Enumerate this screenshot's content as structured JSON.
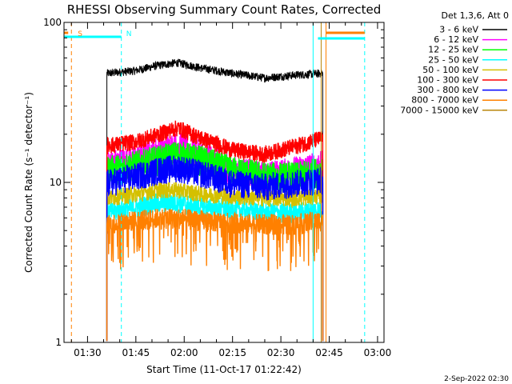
{
  "chart_data": {
    "type": "line",
    "title": "RHESSI Observing Summary Count Rates, Corrected",
    "xlabel": "Start Time (11-Oct-17 01:22:42)",
    "ylabel": "Corrected Count Rate (s⁻¹ detector⁻¹)",
    "xlim": [
      "01:22:42",
      "03:02:00"
    ],
    "ylim": [
      1,
      100
    ],
    "yscale": "log",
    "xticks": [
      "01:30",
      "01:45",
      "02:00",
      "02:15",
      "02:30",
      "02:45",
      "03:00"
    ],
    "yticks": [
      1,
      10,
      100
    ],
    "legend_title": "Det 1,3,6, Att 0",
    "legend_position": "top-right",
    "series": [
      {
        "name": "3 - 6 keV",
        "color": "#000000",
        "x": [
          "01:36",
          "01:45",
          "01:52",
          "01:58",
          "02:05",
          "02:15",
          "02:25",
          "02:35",
          "02:43"
        ],
        "values": [
          48,
          50,
          54,
          56,
          52,
          48,
          45,
          47,
          48
        ]
      },
      {
        "name": "6 - 12 keV",
        "color": "#ff00ff",
        "x": [
          "01:36",
          "01:45",
          "01:52",
          "01:58",
          "02:05",
          "02:15",
          "02:25",
          "02:35",
          "02:43"
        ],
        "values": [
          13,
          14,
          16,
          17,
          15,
          12,
          11,
          12,
          13
        ]
      },
      {
        "name": "12 - 25 keV",
        "color": "#00ff00",
        "x": [
          "01:36",
          "01:45",
          "01:52",
          "01:58",
          "02:05",
          "02:15",
          "02:25",
          "02:35",
          "02:43"
        ],
        "values": [
          12,
          13,
          14,
          15,
          14,
          12,
          11,
          11,
          12
        ]
      },
      {
        "name": "25 - 50 keV",
        "color": "#00ffff",
        "x": [
          "01:36",
          "01:45",
          "01:52",
          "01:58",
          "02:05",
          "02:15",
          "02:25",
          "02:35",
          "02:43"
        ],
        "values": [
          6.5,
          7,
          7.5,
          7.5,
          7,
          6.8,
          6.5,
          6.5,
          6.8
        ]
      },
      {
        "name": "50 - 100 keV",
        "color": "#d4c000",
        "x": [
          "01:36",
          "01:45",
          "01:52",
          "01:58",
          "02:05",
          "02:15",
          "02:25",
          "02:35",
          "02:43"
        ],
        "values": [
          8,
          8.5,
          9,
          9,
          8.5,
          8.2,
          8,
          8,
          8.3
        ]
      },
      {
        "name": "100 - 300 keV",
        "color": "#ff0000",
        "x": [
          "01:36",
          "01:45",
          "01:52",
          "01:58",
          "02:05",
          "02:15",
          "02:25",
          "02:35",
          "02:43"
        ],
        "values": [
          17,
          18,
          20,
          22,
          19,
          16,
          15,
          17,
          19
        ]
      },
      {
        "name": "300 - 800 keV",
        "color": "#0000ff",
        "x": [
          "01:36",
          "01:45",
          "01:52",
          "01:58",
          "02:05",
          "02:15",
          "02:25",
          "02:35",
          "02:43"
        ],
        "values": [
          10,
          11,
          12,
          12.5,
          11.5,
          10,
          9.5,
          10,
          10.5
        ]
      },
      {
        "name": "800 - 7000 keV",
        "color": "#ff8000",
        "x": [
          "01:36",
          "01:45",
          "01:52",
          "01:58",
          "02:05",
          "02:15",
          "02:25",
          "02:35",
          "02:43"
        ],
        "values": [
          5.5,
          5.8,
          6,
          6,
          5.8,
          5.6,
          5.5,
          5.5,
          5.8
        ]
      },
      {
        "name": "7000 - 15000 keV",
        "color": "#b8860b",
        "x": [
          "01:36",
          "02:43"
        ],
        "values": [
          null,
          null
        ]
      }
    ],
    "annotations": [
      {
        "text": "S",
        "color": "#ff8000"
      },
      {
        "text": "N",
        "color": "#00ffff"
      }
    ]
  },
  "footer": {
    "date": "2-Sep-2022 02:30"
  }
}
